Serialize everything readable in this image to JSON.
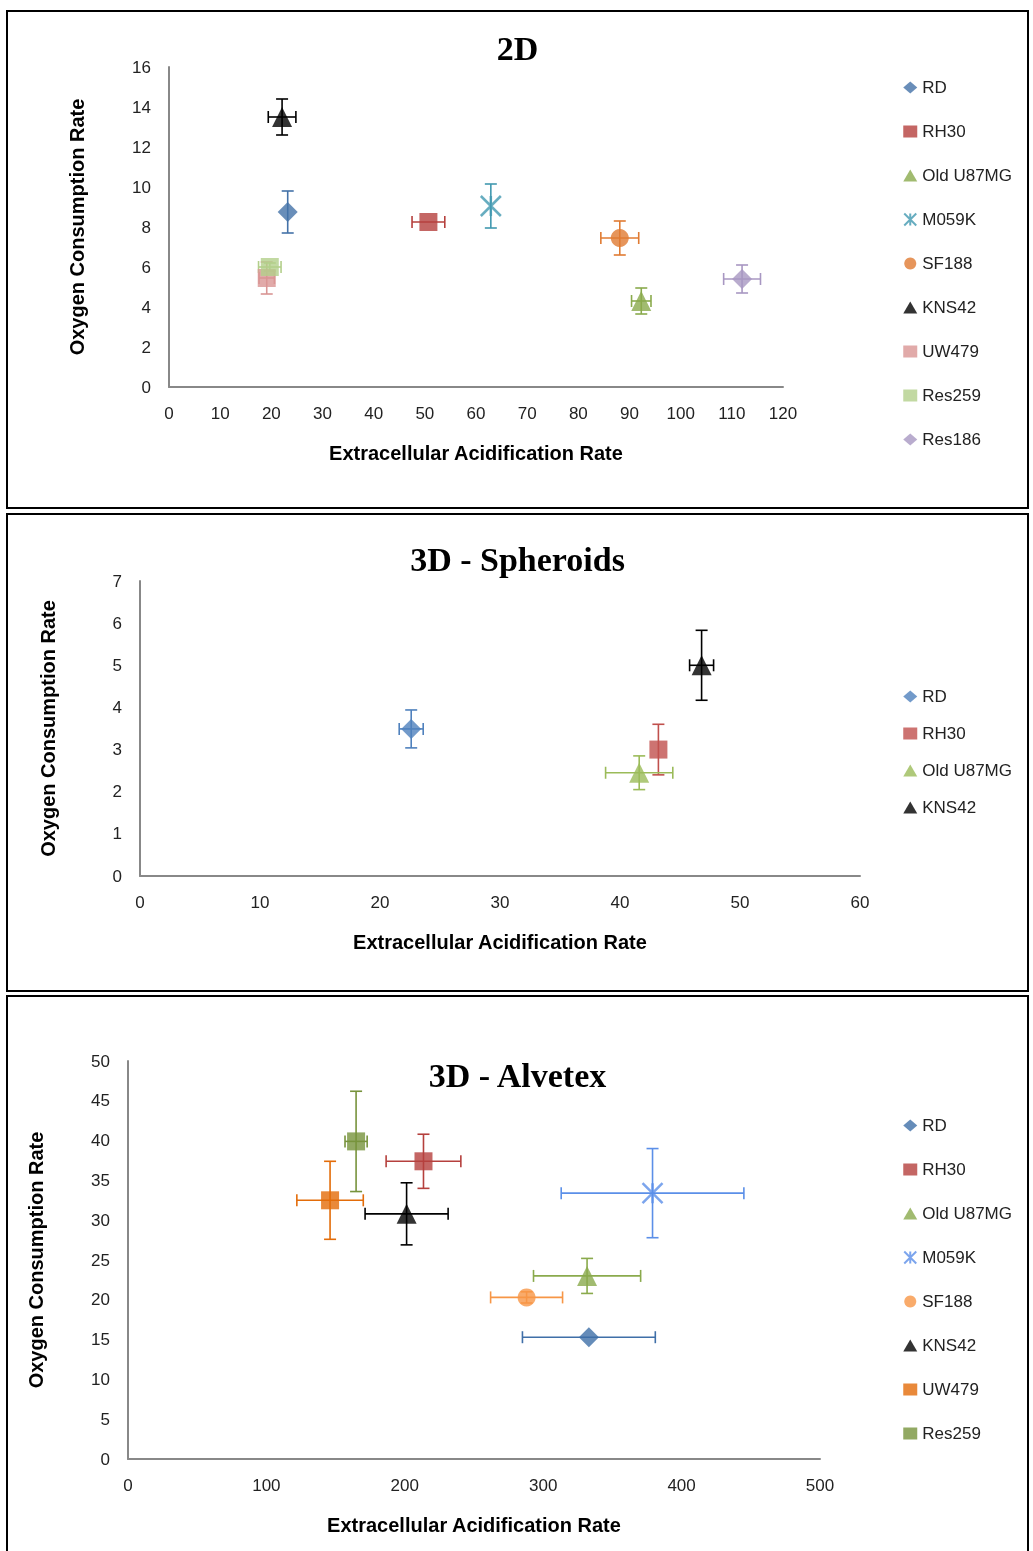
{
  "chart_data": [
    {
      "type": "scatter",
      "title": "2D",
      "xlabel": "Extracellular Acidification Rate",
      "ylabel": "Oxygen Consumption Rate",
      "xlim": [
        0,
        120
      ],
      "xticks": [
        0,
        10,
        20,
        30,
        40,
        50,
        60,
        70,
        80,
        90,
        100,
        110,
        120
      ],
      "ylim": [
        0,
        16
      ],
      "yticks": [
        0,
        2,
        4,
        6,
        8,
        10,
        12,
        14,
        16
      ],
      "grid": false,
      "legend": "right",
      "series": [
        {
          "name": "RD",
          "color": "#4472a8",
          "marker": "diamond",
          "x": [
            23.2
          ],
          "values": [
            8.75
          ],
          "errors": [
            1.05
          ]
        },
        {
          "name": "RH30",
          "color": "#b5403d",
          "marker": "square",
          "x": [
            50.7
          ],
          "values": [
            8.25
          ],
          "errors": [
            null
          ],
          "xerrors": [
            3.2
          ]
        },
        {
          "name": "Old U87MG",
          "color": "#8aaa4c",
          "marker": "triangle",
          "x": [
            92.3
          ],
          "values": [
            4.3
          ],
          "errors": [
            0.65
          ],
          "xerrors": [
            1.9
          ]
        },
        {
          "name": "M059K",
          "color": "#4199b0",
          "marker": "cross",
          "x": [
            62.9
          ],
          "values": [
            9.05
          ],
          "errors": [
            1.1
          ]
        },
        {
          "name": "SF188",
          "color": "#e07b32",
          "marker": "circle",
          "x": [
            88.1
          ],
          "values": [
            7.45
          ],
          "errors": [
            0.85
          ],
          "xerrors": [
            3.7
          ]
        },
        {
          "name": "KNS42",
          "color": "#000000",
          "marker": "triangle",
          "x": [
            22.1
          ],
          "values": [
            13.5
          ],
          "errors": [
            0.9
          ],
          "xerrors": [
            2.7
          ]
        },
        {
          "name": "UW479",
          "color": "#d99594",
          "marker": "square",
          "x": [
            19.1
          ],
          "values": [
            5.45
          ],
          "errors": [
            0.8
          ],
          "xerrors": [
            1.5
          ]
        },
        {
          "name": "Res259",
          "color": "#b3cf8b",
          "marker": "square",
          "x": [
            19.7
          ],
          "values": [
            6.0
          ],
          "errors": [
            0.2
          ],
          "xerrors": [
            2.2
          ]
        },
        {
          "name": "Res186",
          "color": "#a897c2",
          "marker": "diamond",
          "x": [
            112
          ],
          "values": [
            5.4
          ],
          "errors": [
            0.7
          ],
          "xerrors": [
            3.6
          ]
        }
      ]
    },
    {
      "type": "scatter",
      "title": "3D - Spheroids",
      "xlabel": "Extracellular Acidification Rate",
      "ylabel": "Oxygen Consumption Rate",
      "xlim": [
        0,
        60
      ],
      "xticks": [
        0,
        10,
        20,
        30,
        40,
        50,
        60
      ],
      "ylim": [
        0,
        7
      ],
      "yticks": [
        0,
        1,
        2,
        3,
        4,
        5,
        6,
        7
      ],
      "grid": false,
      "legend": "right",
      "series": [
        {
          "name": "RD",
          "color": "#4f81bd",
          "marker": "diamond",
          "x": [
            22.6
          ],
          "values": [
            3.49
          ],
          "errors": [
            0.45
          ],
          "xerrors": [
            1.0
          ]
        },
        {
          "name": "RH30",
          "color": "#c0504d",
          "marker": "square",
          "x": [
            43.2
          ],
          "values": [
            3.0
          ],
          "errors": [
            0.6
          ]
        },
        {
          "name": "Old U87MG",
          "color": "#9bbb59",
          "marker": "triangle",
          "x": [
            41.6
          ],
          "values": [
            2.45
          ],
          "errors": [
            0.4
          ],
          "xerrors": [
            2.8
          ]
        },
        {
          "name": "KNS42",
          "color": "#000000",
          "marker": "triangle",
          "x": [
            46.8
          ],
          "values": [
            5.0
          ],
          "errors": [
            0.83
          ],
          "xerrors": [
            1.0
          ]
        }
      ]
    },
    {
      "type": "scatter",
      "title": "3D - Alvetex",
      "xlabel": "Extracellular Acidification Rate",
      "ylabel": "Oxygen Consumption Rate",
      "xlim": [
        0,
        500
      ],
      "xticks": [
        0,
        100,
        200,
        300,
        400,
        500
      ],
      "ylim": [
        0,
        50
      ],
      "yticks": [
        0,
        5,
        10,
        15,
        20,
        25,
        30,
        35,
        40,
        45,
        50
      ],
      "grid": false,
      "legend": "right",
      "series": [
        {
          "name": "RD",
          "color": "#3f6fa8",
          "marker": "diamond",
          "x": [
            333
          ],
          "values": [
            15.3
          ],
          "xerrors": [
            48
          ]
        },
        {
          "name": "RH30",
          "color": "#b5403d",
          "marker": "square",
          "x": [
            213.5
          ],
          "values": [
            37.4
          ],
          "errors": [
            3.4
          ],
          "xerrors": [
            27
          ]
        },
        {
          "name": "Old U87MG",
          "color": "#8aaa4c",
          "marker": "triangle",
          "x": [
            331.7
          ],
          "values": [
            23
          ],
          "errors": [
            2.2
          ],
          "xerrors": [
            38.7
          ]
        },
        {
          "name": "M059K",
          "color": "#5b8fe8",
          "marker": "cross",
          "x": [
            379
          ],
          "values": [
            33.4
          ],
          "errors": [
            5.6
          ],
          "xerrors": [
            66
          ]
        },
        {
          "name": "SF188",
          "color": "#f79646",
          "marker": "circle",
          "x": [
            288
          ],
          "values": [
            20.3
          ],
          "errors": [
            0.7
          ],
          "xerrors": [
            26
          ]
        },
        {
          "name": "KNS42",
          "color": "#000000",
          "marker": "triangle",
          "x": [
            201.3
          ],
          "values": [
            30.8
          ],
          "errors": [
            3.9
          ],
          "xerrors": [
            30
          ]
        },
        {
          "name": "UW479",
          "color": "#e36c09",
          "marker": "square",
          "x": [
            146
          ],
          "values": [
            32.5
          ],
          "errors": [
            4.9
          ],
          "xerrors": [
            24
          ]
        },
        {
          "name": "Res259",
          "color": "#77933c",
          "marker": "square",
          "x": [
            164.8
          ],
          "values": [
            39.9
          ],
          "errors": [
            6.3
          ],
          "xerrors": [
            8
          ]
        }
      ]
    }
  ]
}
